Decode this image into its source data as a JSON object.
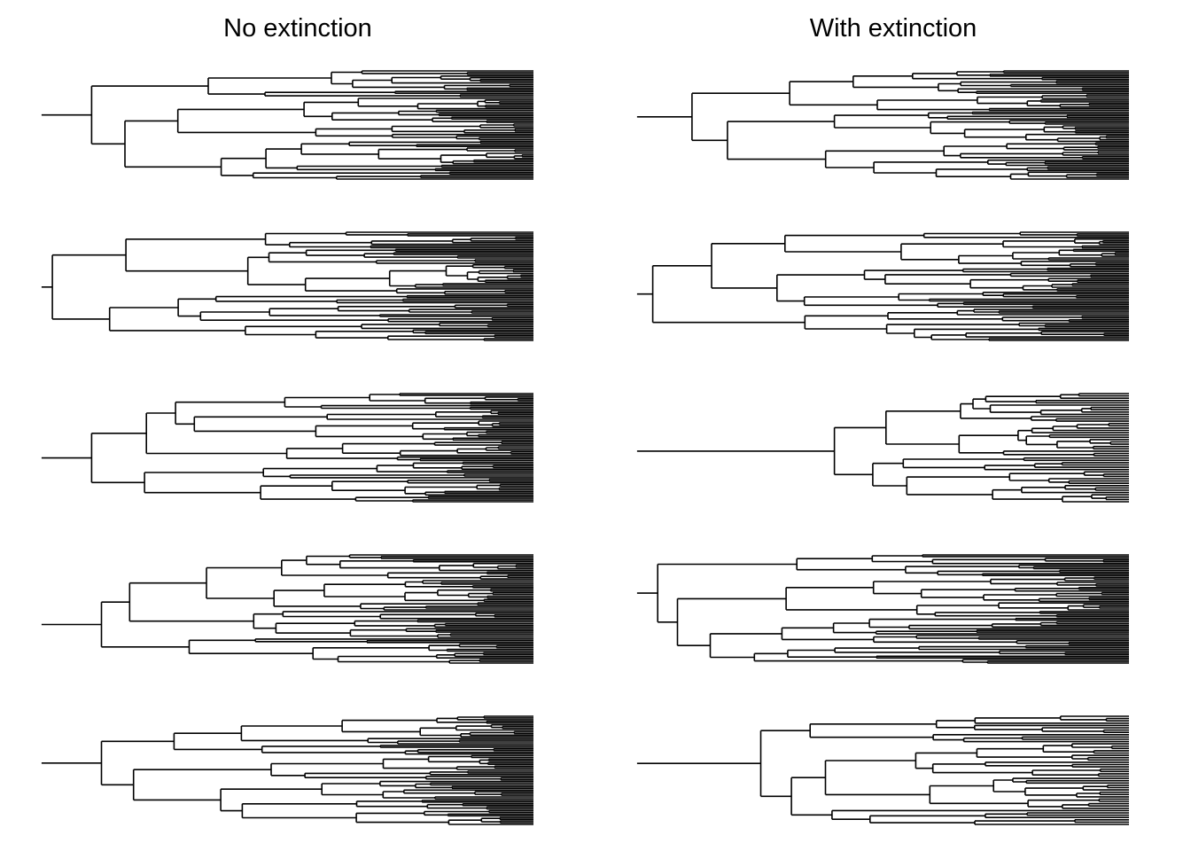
{
  "figure": {
    "left_title": "No extinction",
    "right_title": "With extinction",
    "rows": 5,
    "columns": [
      "No extinction",
      "With extinction"
    ],
    "line_color": "#000000",
    "background": "#ffffff"
  },
  "trees": [
    {
      "column": "No extinction",
      "row": 1,
      "tips": 64
    },
    {
      "column": "No extinction",
      "row": 2,
      "tips": 64
    },
    {
      "column": "No extinction",
      "row": 3,
      "tips": 64
    },
    {
      "column": "No extinction",
      "row": 4,
      "tips": 64
    },
    {
      "column": "No extinction",
      "row": 5,
      "tips": 64
    },
    {
      "column": "With extinction",
      "row": 1,
      "tips": 64
    },
    {
      "column": "With extinction",
      "row": 2,
      "tips": 64
    },
    {
      "column": "With extinction",
      "row": 3,
      "tips": 48
    },
    {
      "column": "With extinction",
      "row": 4,
      "tips": 64
    },
    {
      "column": "With extinction",
      "row": 5,
      "tips": 48
    }
  ]
}
